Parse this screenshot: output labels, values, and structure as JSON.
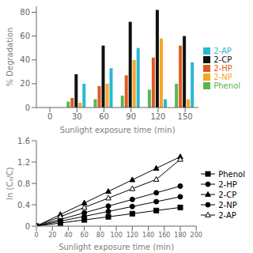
{
  "chart_data": [
    {
      "type": "bar",
      "xlabel": "Sunlight exposure time (min)",
      "ylabel": "% Degradation",
      "categories": [
        "0",
        "30",
        "60",
        "90",
        "120",
        "150"
      ],
      "series": [
        {
          "name": "Phenol",
          "color": "#5ab555",
          "values": [
            0,
            5,
            7,
            10,
            15,
            20
          ]
        },
        {
          "name": "2-HP",
          "color": "#e05a20",
          "values": [
            0,
            8,
            18,
            27,
            42,
            52
          ]
        },
        {
          "name": "2-CP",
          "color": "#111111",
          "values": [
            0,
            28,
            52,
            72,
            82,
            60
          ]
        },
        {
          "name": "2-NP",
          "color": "#f5a623",
          "values": [
            0,
            4,
            20,
            40,
            58,
            7
          ]
        },
        {
          "name": "2-AP",
          "color": "#2ab8d0",
          "values": [
            0,
            20,
            33,
            50,
            7,
            38
          ]
        }
      ],
      "ylim": [
        0,
        85
      ],
      "yticks": [
        0,
        20,
        40,
        60,
        80
      ],
      "grid": false,
      "legend": "right"
    },
    {
      "type": "line",
      "xlabel": "Sunlight exposure time (min)",
      "ylabel": "ln (C₀/C)",
      "x": [
        0,
        30,
        60,
        90,
        120,
        150,
        180
      ],
      "series": [
        {
          "name": "Phenol",
          "color": "#000000",
          "marker": "square",
          "values": [
            0,
            0.058,
            0.117,
            0.175,
            0.233,
            0.292,
            0.35
          ]
        },
        {
          "name": "2-HP",
          "color": "#000000",
          "marker": "circle",
          "values": [
            0,
            0.092,
            0.183,
            0.275,
            0.367,
            0.458,
            0.55
          ]
        },
        {
          "name": "2-CP",
          "color": "#000000",
          "marker": "triangle",
          "values": [
            0,
            0.217,
            0.433,
            0.65,
            0.867,
            1.083,
            1.3
          ]
        },
        {
          "name": "2-NP",
          "color": "#000000",
          "marker": "circle",
          "values": [
            0,
            0.125,
            0.25,
            0.375,
            0.5,
            0.625,
            0.75
          ]
        },
        {
          "name": "2-AP",
          "color": "#000000",
          "marker": "triangle-open",
          "values": [
            0,
            0.175,
            0.35,
            0.525,
            0.7,
            0.875,
            1.25
          ]
        }
      ],
      "xlim": [
        0,
        200
      ],
      "xticks": [
        0,
        20,
        40,
        60,
        80,
        100,
        120,
        140,
        160,
        180,
        200
      ],
      "ylim": [
        0,
        1.6
      ],
      "yticks": [
        0,
        0.4,
        0.8,
        1.2,
        1.6
      ],
      "grid": false,
      "legend": "right"
    }
  ]
}
